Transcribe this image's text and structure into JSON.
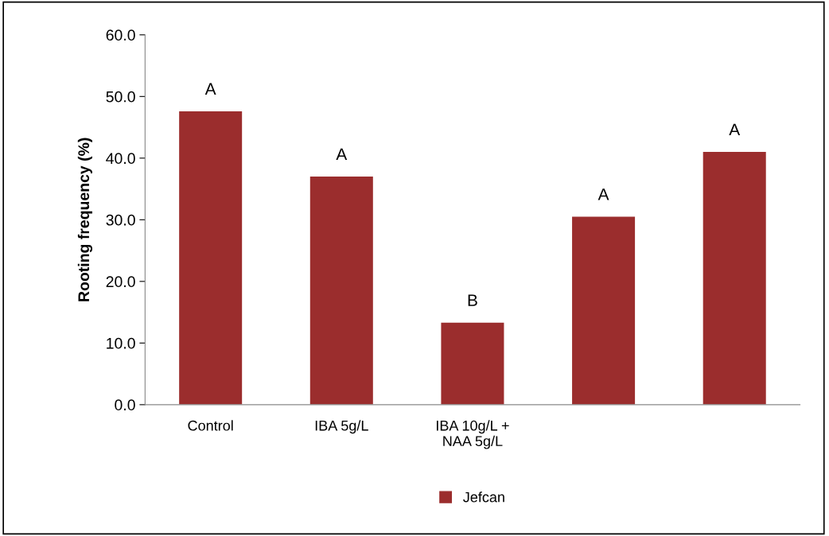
{
  "chart_data": {
    "type": "bar",
    "ylabel": "Rooting frequency (%)",
    "categories": [
      "Control",
      "IBA 5g/L",
      "IBA 10g/L +\nNAA 5g/L",
      null,
      null
    ],
    "series": [
      {
        "name": "Jefcan",
        "color": "#9b2d2d",
        "values": [
          47.6,
          37.0,
          13.3,
          30.5,
          41.0
        ]
      }
    ],
    "ylim": [
      0,
      60
    ],
    "yticks": [
      {
        "value": 0,
        "label": "0.0"
      },
      {
        "value": 10,
        "label": "10.0"
      },
      {
        "value": 20,
        "label": "20.0"
      },
      {
        "value": 30,
        "label": "30.0"
      },
      {
        "value": 40,
        "label": "40.0"
      },
      {
        "value": 50,
        "label": "50.0"
      },
      {
        "value": 60,
        "label": "60.0"
      }
    ],
    "annotations": [
      {
        "text": "A",
        "y": 47.6
      },
      {
        "text": "A",
        "y": 37.0
      },
      {
        "text": "B",
        "y": 13.3
      },
      {
        "text": "A",
        "y": 30.5
      },
      {
        "text": "A",
        "y": 41.0
      }
    ],
    "grid": false,
    "legend": "bottom"
  }
}
